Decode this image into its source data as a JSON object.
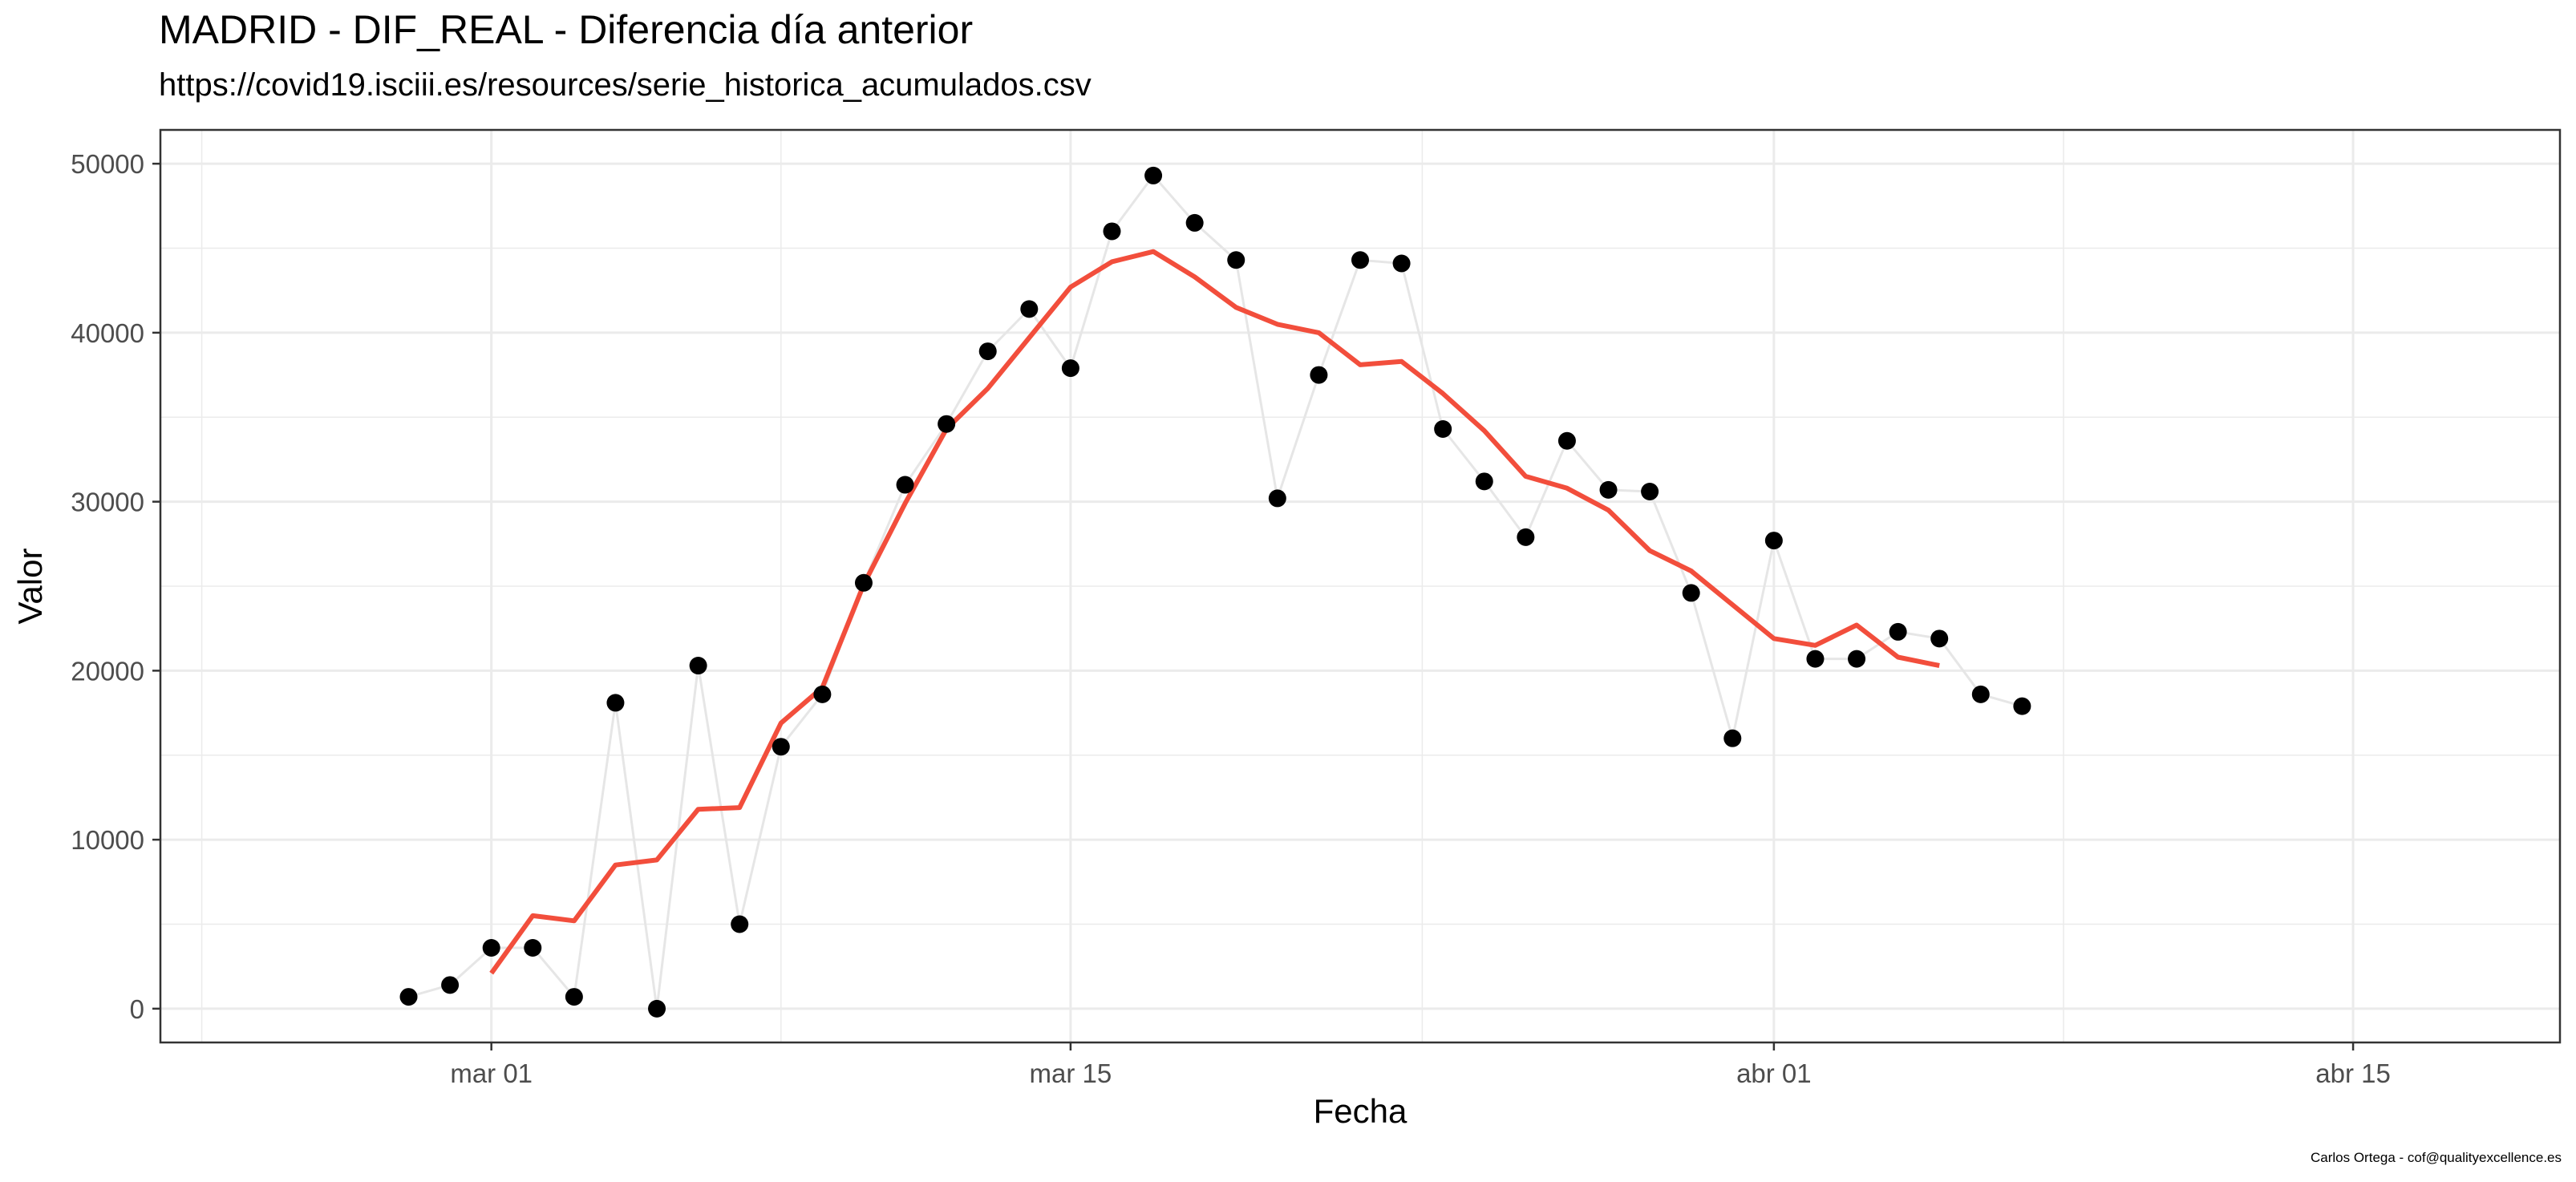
{
  "title": "MADRID - DIF_REAL - Diferencia día anterior",
  "subtitle": "https://covid19.isciii.es/resources/serie_historica_acumulados.csv",
  "caption": "Carlos Ortega - cof@qualityexcellence.es",
  "chart_data": {
    "type": "line",
    "xlabel": "Fecha",
    "ylabel": "Valor",
    "x_axis_type": "date",
    "xlim": [
      "2020-02-22",
      "2020-04-20"
    ],
    "ylim": [
      -2000,
      52000
    ],
    "grid": true,
    "x_ticks": [
      {
        "date": "2020-03-01",
        "label": "mar 01"
      },
      {
        "date": "2020-03-15",
        "label": "mar 15"
      },
      {
        "date": "2020-04-01",
        "label": "abr 01"
      },
      {
        "date": "2020-04-15",
        "label": "abr 15"
      }
    ],
    "y_ticks": [
      0,
      10000,
      20000,
      30000,
      40000,
      50000
    ],
    "colors": {
      "points": "#000000",
      "connector": "#e6e6e6",
      "smooth": "#f24e3c",
      "grid": "#ebebeb"
    },
    "series": [
      {
        "style": "points-with-line",
        "points": [
          {
            "date": "2020-02-28",
            "value": 700
          },
          {
            "date": "2020-02-29",
            "value": 1400
          },
          {
            "date": "2020-03-01",
            "value": 3600
          },
          {
            "date": "2020-03-02",
            "value": 3600
          },
          {
            "date": "2020-03-03",
            "value": 700
          },
          {
            "date": "2020-03-04",
            "value": 18100
          },
          {
            "date": "2020-03-05",
            "value": 0
          },
          {
            "date": "2020-03-06",
            "value": 20300
          },
          {
            "date": "2020-03-07",
            "value": 5000
          },
          {
            "date": "2020-03-08",
            "value": 15500
          },
          {
            "date": "2020-03-09",
            "value": 18600
          },
          {
            "date": "2020-03-10",
            "value": 25200
          },
          {
            "date": "2020-03-11",
            "value": 31000
          },
          {
            "date": "2020-03-12",
            "value": 34600
          },
          {
            "date": "2020-03-13",
            "value": 38900
          },
          {
            "date": "2020-03-14",
            "value": 41400
          },
          {
            "date": "2020-03-15",
            "value": 37900
          },
          {
            "date": "2020-03-16",
            "value": 46000
          },
          {
            "date": "2020-03-17",
            "value": 49300
          },
          {
            "date": "2020-03-18",
            "value": 46500
          },
          {
            "date": "2020-03-19",
            "value": 44300
          },
          {
            "date": "2020-03-20",
            "value": 30200
          },
          {
            "date": "2020-03-21",
            "value": 37500
          },
          {
            "date": "2020-03-22",
            "value": 44300
          },
          {
            "date": "2020-03-23",
            "value": 44100
          },
          {
            "date": "2020-03-24",
            "value": 34300
          },
          {
            "date": "2020-03-25",
            "value": 31200
          },
          {
            "date": "2020-03-26",
            "value": 27900
          },
          {
            "date": "2020-03-27",
            "value": 33600
          },
          {
            "date": "2020-03-28",
            "value": 30700
          },
          {
            "date": "2020-03-29",
            "value": 30600
          },
          {
            "date": "2020-03-30",
            "value": 24600
          },
          {
            "date": "2020-03-31",
            "value": 16000
          },
          {
            "date": "2020-04-01",
            "value": 27700
          },
          {
            "date": "2020-04-02",
            "value": 20700
          },
          {
            "date": "2020-04-03",
            "value": 20700
          },
          {
            "date": "2020-04-04",
            "value": 22300
          },
          {
            "date": "2020-04-05",
            "value": 21900
          },
          {
            "date": "2020-04-06",
            "value": 18600
          },
          {
            "date": "2020-04-07",
            "value": 17900
          }
        ]
      },
      {
        "style": "smooth-line",
        "points": [
          {
            "date": "2020-03-01",
            "value": 2100
          },
          {
            "date": "2020-03-02",
            "value": 5500
          },
          {
            "date": "2020-03-03",
            "value": 5200
          },
          {
            "date": "2020-03-04",
            "value": 8500
          },
          {
            "date": "2020-03-05",
            "value": 8800
          },
          {
            "date": "2020-03-06",
            "value": 11800
          },
          {
            "date": "2020-03-07",
            "value": 11900
          },
          {
            "date": "2020-03-08",
            "value": 16900
          },
          {
            "date": "2020-03-09",
            "value": 19000
          },
          {
            "date": "2020-03-10",
            "value": 25100
          },
          {
            "date": "2020-03-11",
            "value": 29900
          },
          {
            "date": "2020-03-12",
            "value": 34300
          },
          {
            "date": "2020-03-13",
            "value": 36700
          },
          {
            "date": "2020-03-14",
            "value": 39700
          },
          {
            "date": "2020-03-15",
            "value": 42700
          },
          {
            "date": "2020-03-16",
            "value": 44200
          },
          {
            "date": "2020-03-17",
            "value": 44800
          },
          {
            "date": "2020-03-18",
            "value": 43300
          },
          {
            "date": "2020-03-19",
            "value": 41500
          },
          {
            "date": "2020-03-20",
            "value": 40500
          },
          {
            "date": "2020-03-21",
            "value": 40000
          },
          {
            "date": "2020-03-22",
            "value": 38100
          },
          {
            "date": "2020-03-23",
            "value": 38300
          },
          {
            "date": "2020-03-24",
            "value": 36400
          },
          {
            "date": "2020-03-25",
            "value": 34200
          },
          {
            "date": "2020-03-26",
            "value": 31500
          },
          {
            "date": "2020-03-27",
            "value": 30800
          },
          {
            "date": "2020-03-28",
            "value": 29500
          },
          {
            "date": "2020-03-29",
            "value": 27100
          },
          {
            "date": "2020-03-30",
            "value": 25900
          },
          {
            "date": "2020-03-31",
            "value": 23900
          },
          {
            "date": "2020-04-01",
            "value": 21900
          },
          {
            "date": "2020-04-02",
            "value": 21500
          },
          {
            "date": "2020-04-03",
            "value": 22700
          },
          {
            "date": "2020-04-04",
            "value": 20800
          },
          {
            "date": "2020-04-05",
            "value": 20300
          }
        ]
      }
    ]
  }
}
